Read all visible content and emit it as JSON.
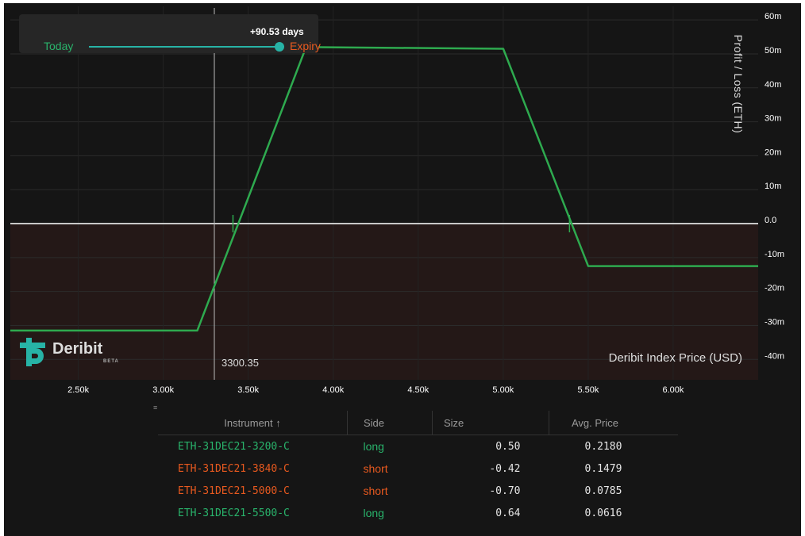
{
  "expiry_slider": {
    "days_label": "+90.53 days",
    "left_label": "Today",
    "right_label": "Expiry"
  },
  "cursor": {
    "value_label": "3300.35",
    "x": 3300.35
  },
  "logo": {
    "name": "Deribit",
    "badge": "BETA"
  },
  "colors": {
    "background": "#151515",
    "loss_region": "#241817",
    "pnl_line": "#2eaa4f",
    "zero_line": "#c8c8c8",
    "long": "#29b36b",
    "short": "#e8591f",
    "slider": "#27b3a6"
  },
  "chart_data": {
    "type": "line",
    "xlabel": "Deribit Index Price   (USD)",
    "ylabel": "Profit / Loss  (ETH)",
    "xlim": [
      2100,
      6500
    ],
    "ylim": [
      -46,
      64
    ],
    "x_ticks": [
      2500,
      3000,
      3500,
      4000,
      4500,
      5000,
      5500,
      6000
    ],
    "x_tick_labels": [
      "2.50k",
      "3.00k",
      "3.50k",
      "4.00k",
      "4.50k",
      "5.00k",
      "5.50k",
      "6.00k"
    ],
    "y_ticks": [
      60,
      50,
      40,
      30,
      20,
      10,
      0,
      -10,
      -20,
      -30,
      -40
    ],
    "y_tick_labels": [
      "60m",
      "50m",
      "40m",
      "30m",
      "20m",
      "10m",
      "0.0",
      "-10m",
      "-20m",
      "-30m",
      "-40m"
    ],
    "grid": true,
    "series": [
      {
        "x": [
          2100,
          3200,
          3840,
          5000,
          5500,
          6500
        ],
        "y": [
          -31.5,
          -31.5,
          52,
          51.5,
          -12.5,
          -12.5
        ]
      }
    ],
    "breakeven_x": [
      3410,
      5390
    ]
  },
  "table": {
    "headers": [
      "Instrument ↑",
      "Side",
      "Size",
      "Avg. Price"
    ],
    "rows": [
      {
        "instrument": "ETH-31DEC21-3200-C",
        "side": "long",
        "size": "0.50",
        "avg_price": "0.2180"
      },
      {
        "instrument": "ETH-31DEC21-3840-C",
        "side": "short",
        "size": "-0.42",
        "avg_price": "0.1479"
      },
      {
        "instrument": "ETH-31DEC21-5000-C",
        "side": "short",
        "size": "-0.70",
        "avg_price": "0.0785"
      },
      {
        "instrument": "ETH-31DEC21-5500-C",
        "side": "long",
        "size": "0.64",
        "avg_price": "0.0616"
      }
    ]
  }
}
